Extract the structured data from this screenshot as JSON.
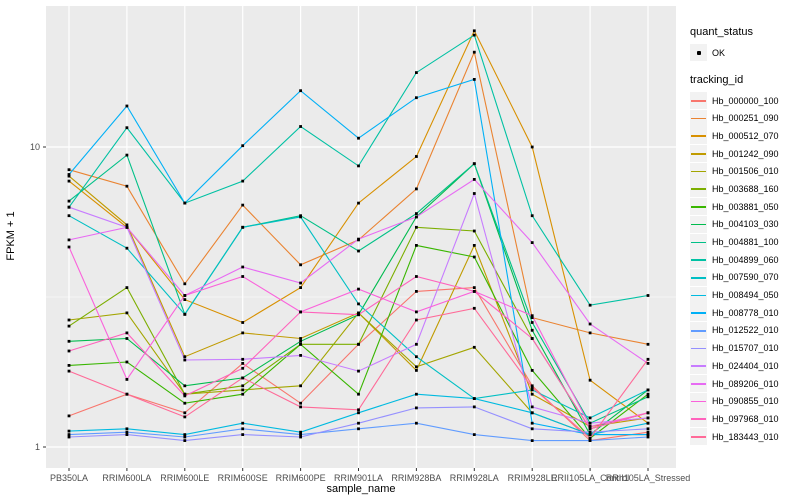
{
  "chart_data": {
    "type": "line",
    "title": "",
    "xlabel": "sample_name",
    "ylabel": "FPKM + 1",
    "y_scale": "log10",
    "ylim": [
      1,
      29
    ],
    "y_ticks": [
      {
        "label": "10",
        "value": 10
      },
      {
        "label": "1",
        "value": 1
      }
    ],
    "grid": "on",
    "panel_background": "#ebebeb",
    "gridline_color": "#ffffff",
    "tick_text_color": "#4d4d4d",
    "point_color": "#000000",
    "legend_position": "right",
    "categories": [
      "PB350LA",
      "RRIM600LA",
      "RRIM600LE",
      "RRIM600SE",
      "RRIM600PE",
      "RRIM901LA",
      "RRIM928BA",
      "RRIM928LA",
      "RRIM928LE",
      "RRII105LA_Control",
      "RRII105LA_Stressed"
    ],
    "legend": {
      "quant_status_title": "quant_status",
      "quant_status_items": [
        "OK"
      ],
      "tracking_id_title": "tracking_id"
    },
    "series": [
      {
        "name": "Hb_000000_100",
        "color": "#F8766D",
        "values": [
          1.27,
          1.5,
          1.3,
          1.9,
          1.4,
          2.2,
          3.3,
          3.4,
          1.6,
          1.05,
          1.12
        ]
      },
      {
        "name": "Hb_000251_090",
        "color": "#EA8331",
        "values": [
          8.4,
          7.4,
          3.5,
          6.4,
          4.05,
          4.9,
          7.25,
          20.7,
          2.7,
          2.4,
          2.2
        ]
      },
      {
        "name": "Hb_000512_070",
        "color": "#D89000",
        "values": [
          7.7,
          5.4,
          3.1,
          2.6,
          3.4,
          6.5,
          9.3,
          24.4,
          10.0,
          1.67,
          1.2
        ]
      },
      {
        "name": "Hb_001242_090",
        "color": "#C09B00",
        "values": [
          8.0,
          5.5,
          2.0,
          2.4,
          2.3,
          2.8,
          1.8,
          4.7,
          1.5,
          1.17,
          1.25
        ]
      },
      {
        "name": "Hb_001506_010",
        "color": "#A3A500",
        "values": [
          2.65,
          2.8,
          1.5,
          1.55,
          1.6,
          2.8,
          1.85,
          2.15,
          1.3,
          1.1,
          1.1
        ]
      },
      {
        "name": "Hb_003688_160",
        "color": "#7CAE00",
        "values": [
          2.53,
          3.4,
          1.5,
          1.6,
          2.2,
          2.2,
          5.4,
          5.25,
          2.3,
          1.15,
          1.3
        ]
      },
      {
        "name": "Hb_003881_050",
        "color": "#39B600",
        "values": [
          1.87,
          1.92,
          1.4,
          1.5,
          2.2,
          1.5,
          4.7,
          4.3,
          1.8,
          1.07,
          1.5
        ]
      },
      {
        "name": "Hb_004103_030",
        "color": "#00BB4E",
        "values": [
          2.25,
          2.3,
          1.6,
          1.7,
          2.25,
          2.76,
          5.85,
          8.8,
          2.45,
          1.1,
          1.55
        ]
      },
      {
        "name": "Hb_004881_100",
        "color": "#00C087",
        "values": [
          6.6,
          9.4,
          2.77,
          5.4,
          5.9,
          4.5,
          6.0,
          8.8,
          2.6,
          1.2,
          1.47
        ]
      },
      {
        "name": "Hb_004899_060",
        "color": "#00C1A3",
        "values": [
          6.3,
          11.6,
          6.5,
          7.7,
          11.7,
          8.65,
          17.7,
          23.6,
          5.9,
          2.97,
          3.2
        ]
      },
      {
        "name": "Hb_007590_070",
        "color": "#00BFC4",
        "values": [
          5.9,
          4.6,
          2.77,
          5.4,
          5.85,
          3.0,
          2.0,
          1.45,
          1.55,
          1.25,
          1.55
        ]
      },
      {
        "name": "Hb_008494_050",
        "color": "#00BAE0",
        "values": [
          1.13,
          1.15,
          1.1,
          1.2,
          1.12,
          1.3,
          1.5,
          1.45,
          1.3,
          1.1,
          1.2
        ]
      },
      {
        "name": "Hb_008778_010",
        "color": "#00B0F6",
        "values": [
          8.1,
          13.7,
          6.5,
          10.1,
          15.4,
          10.7,
          14.6,
          16.8,
          1.2,
          1.1,
          1.1
        ]
      },
      {
        "name": "Hb_012522_010",
        "color": "#619CFF",
        "values": [
          1.1,
          1.12,
          1.08,
          1.15,
          1.1,
          1.15,
          1.2,
          1.1,
          1.05,
          1.05,
          1.08
        ]
      },
      {
        "name": "Hb_015707_010",
        "color": "#9590FF",
        "values": [
          1.08,
          1.1,
          1.05,
          1.1,
          1.08,
          1.2,
          1.35,
          1.36,
          1.15,
          1.12,
          1.15
        ]
      },
      {
        "name": "Hb_024404_010",
        "color": "#C77CFF",
        "values": [
          6.3,
          5.4,
          1.95,
          1.96,
          2.02,
          1.79,
          2.2,
          7.0,
          1.36,
          1.2,
          1.25
        ]
      },
      {
        "name": "Hb_089206_010",
        "color": "#E76BF3",
        "values": [
          4.9,
          5.4,
          3.2,
          3.98,
          3.52,
          4.93,
          5.85,
          7.8,
          4.8,
          2.57,
          1.9
        ]
      },
      {
        "name": "Hb_090855_010",
        "color": "#FA62DB",
        "values": [
          4.64,
          1.68,
          3.2,
          3.7,
          2.82,
          3.36,
          2.82,
          3.3,
          2.74,
          1.17,
          1.3
        ]
      },
      {
        "name": "Hb_097968_010",
        "color": "#FF62BC",
        "values": [
          2.09,
          2.4,
          1.48,
          1.83,
          2.82,
          2.76,
          3.7,
          3.3,
          2.3,
          1.15,
          1.3
        ]
      },
      {
        "name": "Hb_183443_010",
        "color": "#FF6A98",
        "values": [
          1.79,
          1.5,
          1.26,
          1.7,
          1.36,
          1.33,
          2.65,
          2.9,
          1.58,
          1.07,
          1.96
        ]
      }
    ]
  }
}
